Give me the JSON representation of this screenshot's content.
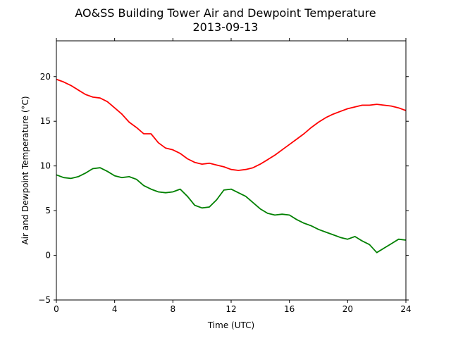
{
  "chart_data": {
    "type": "line",
    "title": "AO&SS Building Tower Air and Dewpoint Temperature",
    "subtitle": "2013-09-13",
    "xlabel": "Time (UTC)",
    "ylabel": "Air and Dewpoint Temperature (°C)",
    "xlim": [
      0,
      24
    ],
    "ylim": [
      -5,
      24
    ],
    "xticks": [
      0,
      4,
      8,
      12,
      16,
      20,
      24
    ],
    "yticks": [
      -5,
      0,
      5,
      10,
      15,
      20
    ],
    "grid": false,
    "series": [
      {
        "color": "#ff0000",
        "x": [
          0,
          0.5,
          1,
          1.5,
          2,
          2.5,
          3,
          3.5,
          4,
          4.5,
          5,
          5.5,
          6,
          6.5,
          7,
          7.5,
          8,
          8.5,
          9,
          9.5,
          10,
          10.5,
          11,
          11.5,
          12,
          12.5,
          13,
          13.5,
          14,
          14.5,
          15,
          15.5,
          16,
          16.5,
          17,
          17.5,
          18,
          18.5,
          19,
          19.5,
          20,
          20.5,
          21,
          21.5,
          22,
          22.5,
          23,
          23.5,
          24
        ],
        "values": [
          19.7,
          19.4,
          19.0,
          18.5,
          18.0,
          17.7,
          17.6,
          17.2,
          16.5,
          15.8,
          14.9,
          14.3,
          13.6,
          13.6,
          12.6,
          12.0,
          11.8,
          11.4,
          10.8,
          10.4,
          10.2,
          10.3,
          10.1,
          9.9,
          9.6,
          9.5,
          9.6,
          9.8,
          10.2,
          10.7,
          11.2,
          11.8,
          12.4,
          13.0,
          13.6,
          14.3,
          14.9,
          15.4,
          15.8,
          16.1,
          16.4,
          16.6,
          16.8,
          16.8,
          16.9,
          16.8,
          16.7,
          16.5,
          16.2
        ]
      },
      {
        "color": "#008000",
        "x": [
          0,
          0.5,
          1,
          1.5,
          2,
          2.5,
          3,
          3.5,
          4,
          4.5,
          5,
          5.5,
          6,
          6.5,
          7,
          7.5,
          8,
          8.5,
          9,
          9.5,
          10,
          10.5,
          11,
          11.5,
          12,
          12.5,
          13,
          13.5,
          14,
          14.5,
          15,
          15.5,
          16,
          16.5,
          17,
          17.5,
          18,
          18.5,
          19,
          19.5,
          20,
          20.5,
          21,
          21.5,
          22,
          22.5,
          23,
          23.5,
          24
        ],
        "values": [
          9.0,
          8.7,
          8.6,
          8.8,
          9.2,
          9.7,
          9.8,
          9.4,
          8.9,
          8.7,
          8.8,
          8.5,
          7.8,
          7.4,
          7.1,
          7.0,
          7.1,
          7.4,
          6.6,
          5.6,
          5.3,
          5.4,
          6.2,
          7.3,
          7.4,
          7.0,
          6.6,
          5.9,
          5.2,
          4.7,
          4.5,
          4.6,
          4.5,
          4.0,
          3.6,
          3.3,
          2.9,
          2.6,
          2.3,
          2.0,
          1.8,
          2.1,
          1.6,
          1.2,
          0.3,
          0.8,
          1.3,
          1.8,
          1.7
        ]
      }
    ]
  }
}
